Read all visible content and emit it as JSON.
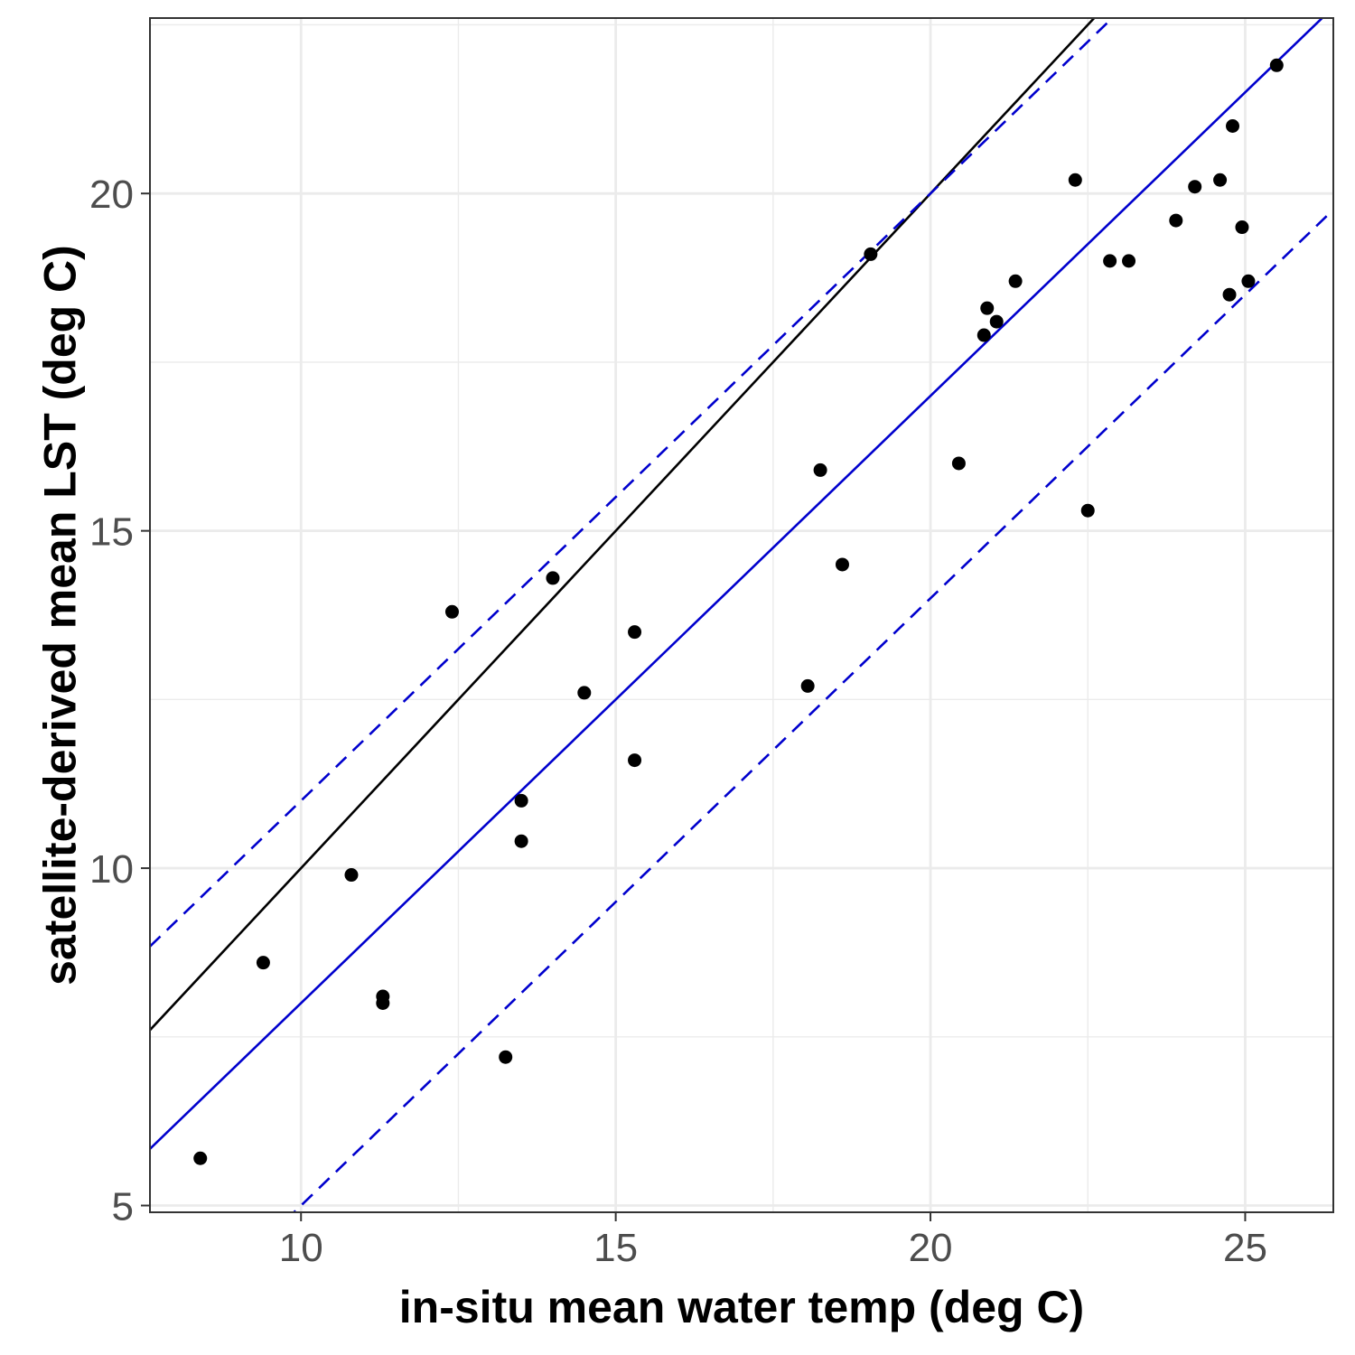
{
  "chart_data": {
    "type": "scatter",
    "title": "",
    "xlabel": "in-situ mean water temp (deg C)",
    "ylabel": "satellite-derived mean LST (deg C)",
    "xlim": [
      7.6,
      26.4
    ],
    "ylim": [
      4.9,
      22.6
    ],
    "x_ticks": [
      10,
      15,
      20,
      25
    ],
    "y_ticks": [
      5,
      10,
      15,
      20
    ],
    "x_minor": [
      7.5,
      12.5,
      17.5,
      22.5
    ],
    "y_minor": [
      7.5,
      12.5,
      17.5,
      22.5
    ],
    "grid": true,
    "point_color": "#000000",
    "points": [
      {
        "x": 8.4,
        "y": 5.7
      },
      {
        "x": 9.4,
        "y": 8.6
      },
      {
        "x": 10.8,
        "y": 9.9
      },
      {
        "x": 11.3,
        "y": 8.1
      },
      {
        "x": 11.3,
        "y": 8.0
      },
      {
        "x": 12.4,
        "y": 13.8
      },
      {
        "x": 13.25,
        "y": 7.2
      },
      {
        "x": 13.5,
        "y": 11.0
      },
      {
        "x": 13.5,
        "y": 10.4
      },
      {
        "x": 14.0,
        "y": 14.3
      },
      {
        "x": 14.5,
        "y": 12.6
      },
      {
        "x": 15.3,
        "y": 13.5
      },
      {
        "x": 15.3,
        "y": 11.6
      },
      {
        "x": 18.05,
        "y": 12.7
      },
      {
        "x": 18.25,
        "y": 15.9
      },
      {
        "x": 18.6,
        "y": 14.5
      },
      {
        "x": 19.05,
        "y": 19.1
      },
      {
        "x": 20.45,
        "y": 16.0
      },
      {
        "x": 20.85,
        "y": 17.9
      },
      {
        "x": 20.9,
        "y": 18.3
      },
      {
        "x": 21.05,
        "y": 18.1
      },
      {
        "x": 21.35,
        "y": 18.7
      },
      {
        "x": 22.3,
        "y": 20.2
      },
      {
        "x": 22.5,
        "y": 15.3
      },
      {
        "x": 22.85,
        "y": 19.0
      },
      {
        "x": 23.15,
        "y": 19.0
      },
      {
        "x": 23.9,
        "y": 19.6
      },
      {
        "x": 24.2,
        "y": 20.1
      },
      {
        "x": 24.6,
        "y": 20.2
      },
      {
        "x": 24.75,
        "y": 18.5
      },
      {
        "x": 24.8,
        "y": 21.0
      },
      {
        "x": 24.95,
        "y": 19.5
      },
      {
        "x": 25.05,
        "y": 18.7
      },
      {
        "x": 25.5,
        "y": 21.9
      }
    ],
    "lines": [
      {
        "kind": "identity",
        "style": "solid",
        "color": "#000000",
        "slope": 1.0,
        "intercept": 0.0
      },
      {
        "kind": "fit",
        "style": "solid",
        "color": "#0000cd",
        "slope": 0.9,
        "intercept": -1.0
      },
      {
        "kind": "upper-bound",
        "style": "dashed",
        "color": "#0000cd",
        "slope": 0.9,
        "intercept": 2.0
      },
      {
        "kind": "lower-bound",
        "style": "dashed",
        "color": "#0000cd",
        "slope": 0.9,
        "intercept": -4.0
      }
    ]
  }
}
